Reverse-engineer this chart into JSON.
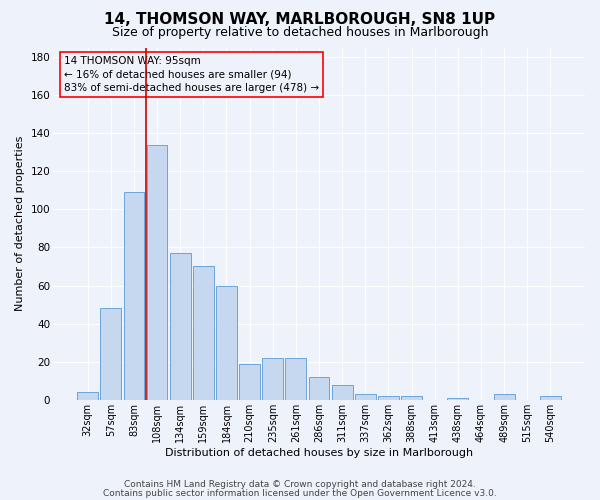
{
  "title": "14, THOMSON WAY, MARLBOROUGH, SN8 1UP",
  "subtitle": "Size of property relative to detached houses in Marlborough",
  "xlabel": "Distribution of detached houses by size in Marlborough",
  "ylabel": "Number of detached properties",
  "footnote1": "Contains HM Land Registry data © Crown copyright and database right 2024.",
  "footnote2": "Contains public sector information licensed under the Open Government Licence v3.0.",
  "annotation_line1": "14 THOMSON WAY: 95sqm",
  "annotation_line2": "← 16% of detached houses are smaller (94)",
  "annotation_line3": "83% of semi-detached houses are larger (478) →",
  "bar_color": "#c5d8f0",
  "bar_edge_color": "#5b9bd5",
  "vline_color": "#cc0000",
  "vline_x_index": 2,
  "categories": [
    "32sqm",
    "57sqm",
    "83sqm",
    "108sqm",
    "134sqm",
    "159sqm",
    "184sqm",
    "210sqm",
    "235sqm",
    "261sqm",
    "286sqm",
    "311sqm",
    "337sqm",
    "362sqm",
    "388sqm",
    "413sqm",
    "438sqm",
    "464sqm",
    "489sqm",
    "515sqm",
    "540sqm"
  ],
  "values": [
    4,
    48,
    109,
    134,
    77,
    70,
    60,
    19,
    22,
    22,
    12,
    8,
    3,
    2,
    2,
    0,
    1,
    0,
    3,
    0,
    2
  ],
  "ylim": [
    0,
    185
  ],
  "yticks": [
    0,
    20,
    40,
    60,
    80,
    100,
    120,
    140,
    160,
    180
  ],
  "background_color": "#eef2fb",
  "grid_color": "#ffffff",
  "title_fontsize": 11,
  "subtitle_fontsize": 9,
  "axis_label_fontsize": 8,
  "tick_fontsize": 7,
  "annotation_fontsize": 7.5,
  "footnote_fontsize": 6.5
}
